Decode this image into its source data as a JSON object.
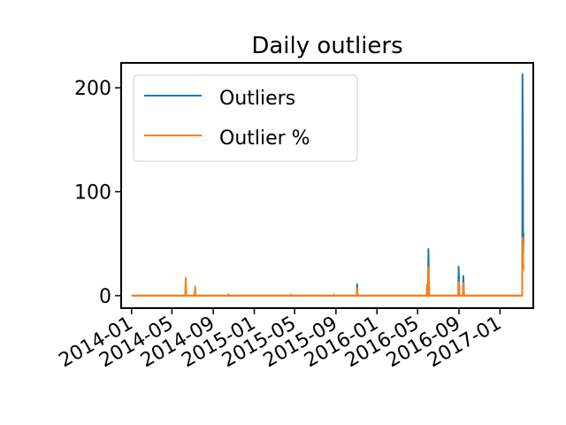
{
  "chart_data": {
    "type": "line",
    "title": "Daily outliers",
    "xlabel": "",
    "ylabel": "",
    "ylim": [
      -12,
      224
    ],
    "xlim": [
      "2013-12-01",
      "2017-04-10"
    ],
    "yticks": [
      0,
      100,
      200
    ],
    "xticks": [
      "2014-01",
      "2014-05",
      "2014-09",
      "2015-01",
      "2015-05",
      "2015-09",
      "2016-01",
      "2016-05",
      "2016-09",
      "2017-01"
    ],
    "legend_position": "upper-left",
    "grid": false,
    "series": [
      {
        "name": "Outliers",
        "color": "#1f77b4",
        "x": [
          "2014-01-01",
          "2014-06-10",
          "2014-06-11",
          "2014-06-12",
          "2014-07-08",
          "2014-07-09",
          "2014-07-10",
          "2014-10-15",
          "2014-10-16",
          "2014-10-17",
          "2015-04-20",
          "2015-04-21",
          "2015-04-22",
          "2015-08-25",
          "2015-08-26",
          "2015-08-27",
          "2015-11-02",
          "2015-11-03",
          "2015-11-04",
          "2016-05-28",
          "2016-05-29",
          "2016-06-01",
          "2016-06-02",
          "2016-06-03",
          "2016-06-04",
          "2016-06-05",
          "2016-08-30",
          "2016-08-31",
          "2016-09-01",
          "2016-09-02",
          "2016-09-13",
          "2016-09-14",
          "2016-09-15",
          "2016-09-16",
          "2017-03-08",
          "2017-03-09",
          "2017-03-10",
          "2017-03-11",
          "2017-03-12"
        ],
        "y": [
          0,
          0,
          13,
          0,
          0,
          7,
          0,
          0,
          1,
          0,
          0,
          1,
          0,
          0,
          1,
          0,
          0,
          11,
          0,
          0,
          10,
          0,
          45,
          27,
          5,
          0,
          0,
          28,
          14,
          0,
          0,
          19,
          10,
          0,
          0,
          213,
          160,
          40,
          60
        ]
      },
      {
        "name": "Outlier %",
        "color": "#ff7f0e",
        "x": [
          "2014-01-01",
          "2014-06-10",
          "2014-06-11",
          "2014-06-12",
          "2014-07-08",
          "2014-07-09",
          "2014-07-10",
          "2014-10-15",
          "2014-10-16",
          "2014-10-17",
          "2015-04-20",
          "2015-04-21",
          "2015-04-22",
          "2015-08-25",
          "2015-08-26",
          "2015-08-27",
          "2015-11-02",
          "2015-11-03",
          "2015-11-04",
          "2016-05-28",
          "2016-05-29",
          "2016-06-01",
          "2016-06-02",
          "2016-06-03",
          "2016-06-04",
          "2016-06-05",
          "2016-08-30",
          "2016-08-31",
          "2016-09-01",
          "2016-09-02",
          "2016-09-13",
          "2016-09-14",
          "2016-09-15",
          "2016-09-16",
          "2017-03-08",
          "2017-03-09",
          "2017-03-10",
          "2017-03-11",
          "2017-03-12"
        ],
        "y": [
          0,
          0,
          17,
          0,
          0,
          9,
          0,
          0,
          1,
          0,
          0,
          1,
          0,
          0,
          1,
          0,
          0,
          7,
          0,
          0,
          11,
          0,
          27,
          26,
          3,
          0,
          0,
          13,
          12,
          0,
          0,
          12,
          10,
          0,
          0,
          56,
          55,
          25,
          30
        ]
      }
    ]
  }
}
